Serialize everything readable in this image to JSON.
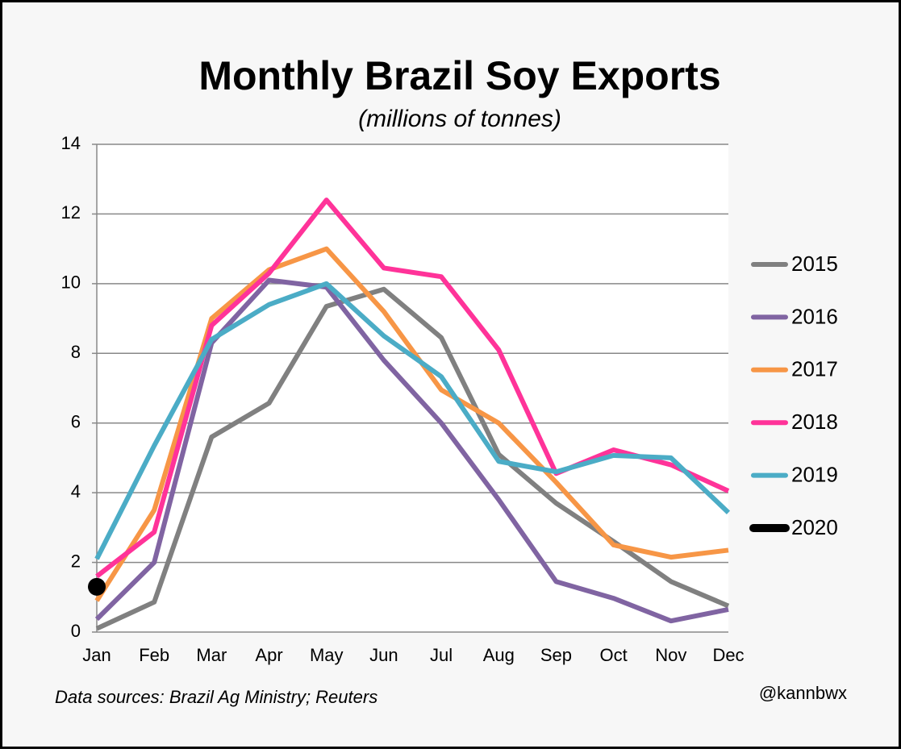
{
  "chart_data": {
    "type": "line",
    "title": "Monthly Brazil Soy Exports",
    "subtitle": "(millions of tonnes)",
    "source": "Data sources: Brazil Ag Ministry; Reuters",
    "credit": "@kannbwx",
    "categories": [
      "Jan",
      "Feb",
      "Mar",
      "Apr",
      "May",
      "Jun",
      "Jul",
      "Aug",
      "Sep",
      "Oct",
      "Nov",
      "Dec"
    ],
    "ylim": [
      0,
      14
    ],
    "yticks": [
      0,
      2,
      4,
      6,
      8,
      10,
      12,
      14
    ],
    "grid": true,
    "legend": "right",
    "series": [
      {
        "name": "2015",
        "color": "#808080",
        "values": [
          0.1,
          0.86,
          5.6,
          6.57,
          9.35,
          9.84,
          8.45,
          5.1,
          3.7,
          2.6,
          1.45,
          0.75
        ]
      },
      {
        "name": "2016",
        "color": "#8064a2",
        "values": [
          0.37,
          2.0,
          8.3,
          10.1,
          9.9,
          7.8,
          6.0,
          3.8,
          1.45,
          0.97,
          0.32,
          0.65
        ]
      },
      {
        "name": "2017",
        "color": "#f79646",
        "values": [
          0.9,
          3.5,
          9.0,
          10.4,
          11.0,
          9.2,
          6.95,
          6.0,
          4.3,
          2.5,
          2.15,
          2.35
        ]
      },
      {
        "name": "2018",
        "color": "#ff3399",
        "values": [
          1.6,
          2.87,
          8.8,
          10.3,
          12.4,
          10.45,
          10.2,
          8.1,
          4.55,
          5.23,
          4.8,
          4.05
        ]
      },
      {
        "name": "2019",
        "color": "#4bacc6",
        "values": [
          2.1,
          5.35,
          8.4,
          9.4,
          10.0,
          8.5,
          7.33,
          4.9,
          4.6,
          5.07,
          5.0,
          3.43
        ]
      },
      {
        "name": "2020",
        "color": "#000000",
        "values": [
          1.3,
          null,
          null,
          null,
          null,
          null,
          null,
          null,
          null,
          null,
          null,
          null
        ]
      }
    ]
  }
}
